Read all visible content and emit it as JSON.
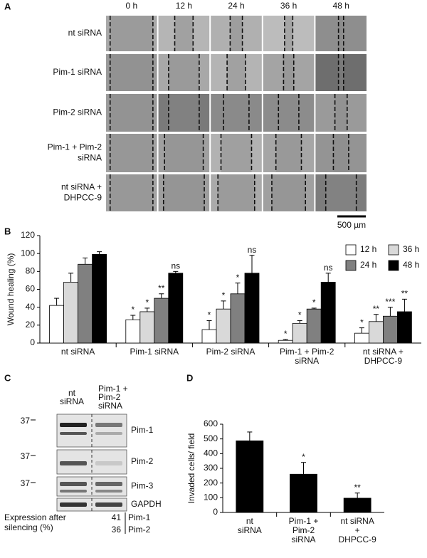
{
  "panel_labels": [
    "A",
    "B",
    "C",
    "D"
  ],
  "panel_a": {
    "columns": [
      "0 h",
      "12 h",
      "24 h",
      "36 h",
      "48 h"
    ],
    "rows": [
      [
        "nt siRNA"
      ],
      [
        "Pim-1 siRNA"
      ],
      [
        "Pim-2 siRNA"
      ],
      [
        "Pim-1 + Pim-2",
        "siRNA"
      ],
      [
        "nt siRNA +",
        "DHPCC-9"
      ]
    ],
    "scale_bar": "500 µm"
  },
  "chart_data": [
    {
      "type": "bar",
      "y_label": "Wound healing (%)",
      "categories": [
        [
          "nt siRNA"
        ],
        [
          "Pim-1 siRNA"
        ],
        [
          "Pim-2 siRNA"
        ],
        [
          "Pim-1 + Pim-2",
          "siRNA"
        ],
        [
          "nt siRNA +",
          "DHPCC-9"
        ]
      ],
      "series": [
        {
          "name": "12 h",
          "color": "#ffffff",
          "values": [
            42,
            26,
            15,
            3,
            11
          ],
          "errors": [
            8,
            5,
            10,
            1,
            6
          ],
          "significance": [
            null,
            "*",
            "*",
            "*",
            "*"
          ]
        },
        {
          "name": "36 h",
          "color": "#d9d9d9",
          "values": [
            68,
            35,
            38,
            22,
            24
          ],
          "errors": [
            10,
            4,
            9,
            3,
            8
          ],
          "significance": [
            null,
            "*",
            "*",
            "*",
            "**"
          ]
        },
        {
          "name": "24 h",
          "color": "#808080",
          "values": [
            88,
            50,
            55,
            38,
            30
          ],
          "errors": [
            7,
            5,
            12,
            1,
            10
          ],
          "significance": [
            null,
            "**",
            "*",
            "*",
            "***"
          ]
        },
        {
          "name": "48 h",
          "color": "#000000",
          "values": [
            99,
            78,
            78,
            68,
            35
          ],
          "errors": [
            3,
            2,
            20,
            10,
            14
          ],
          "significance": [
            null,
            "ns",
            "ns",
            "ns",
            "**"
          ]
        }
      ],
      "ylim": [
        0,
        120
      ],
      "yticks": [
        0,
        20,
        40,
        60,
        80,
        100,
        120
      ],
      "legend": "top-right"
    },
    {
      "type": "bar",
      "y_label": "Invaded cells/ field",
      "categories": [
        [
          "nt",
          "siRNA"
        ],
        [
          "Pim-1 +",
          "Pim-2",
          "siRNA"
        ],
        [
          "nt siRNA",
          "+",
          "DHPCC-9"
        ]
      ],
      "color": "#000000",
      "values": [
        487,
        260,
        97
      ],
      "errors": [
        60,
        80,
        35
      ],
      "significance": [
        null,
        "*",
        "**"
      ],
      "ylim": [
        0,
        600
      ],
      "yticks": [
        0,
        100,
        200,
        300,
        400,
        500,
        600
      ]
    }
  ],
  "panel_c": {
    "lanes": [
      [
        "nt",
        "siRNA"
      ],
      [
        "Pim-1 +",
        "Pim-2",
        "siRNA"
      ]
    ],
    "blots": [
      {
        "label": "Pim-1",
        "marker": "37"
      },
      {
        "label": "Pim-2",
        "marker": "37"
      },
      {
        "label": "Pim-3",
        "marker": "37"
      },
      {
        "label": "GAPDH"
      }
    ],
    "expression_label": [
      "Expression after",
      "silencing (%)"
    ],
    "expression": [
      {
        "value": "41",
        "protein": "Pim-1"
      },
      {
        "value": "36",
        "protein": "Pim-2"
      }
    ]
  }
}
